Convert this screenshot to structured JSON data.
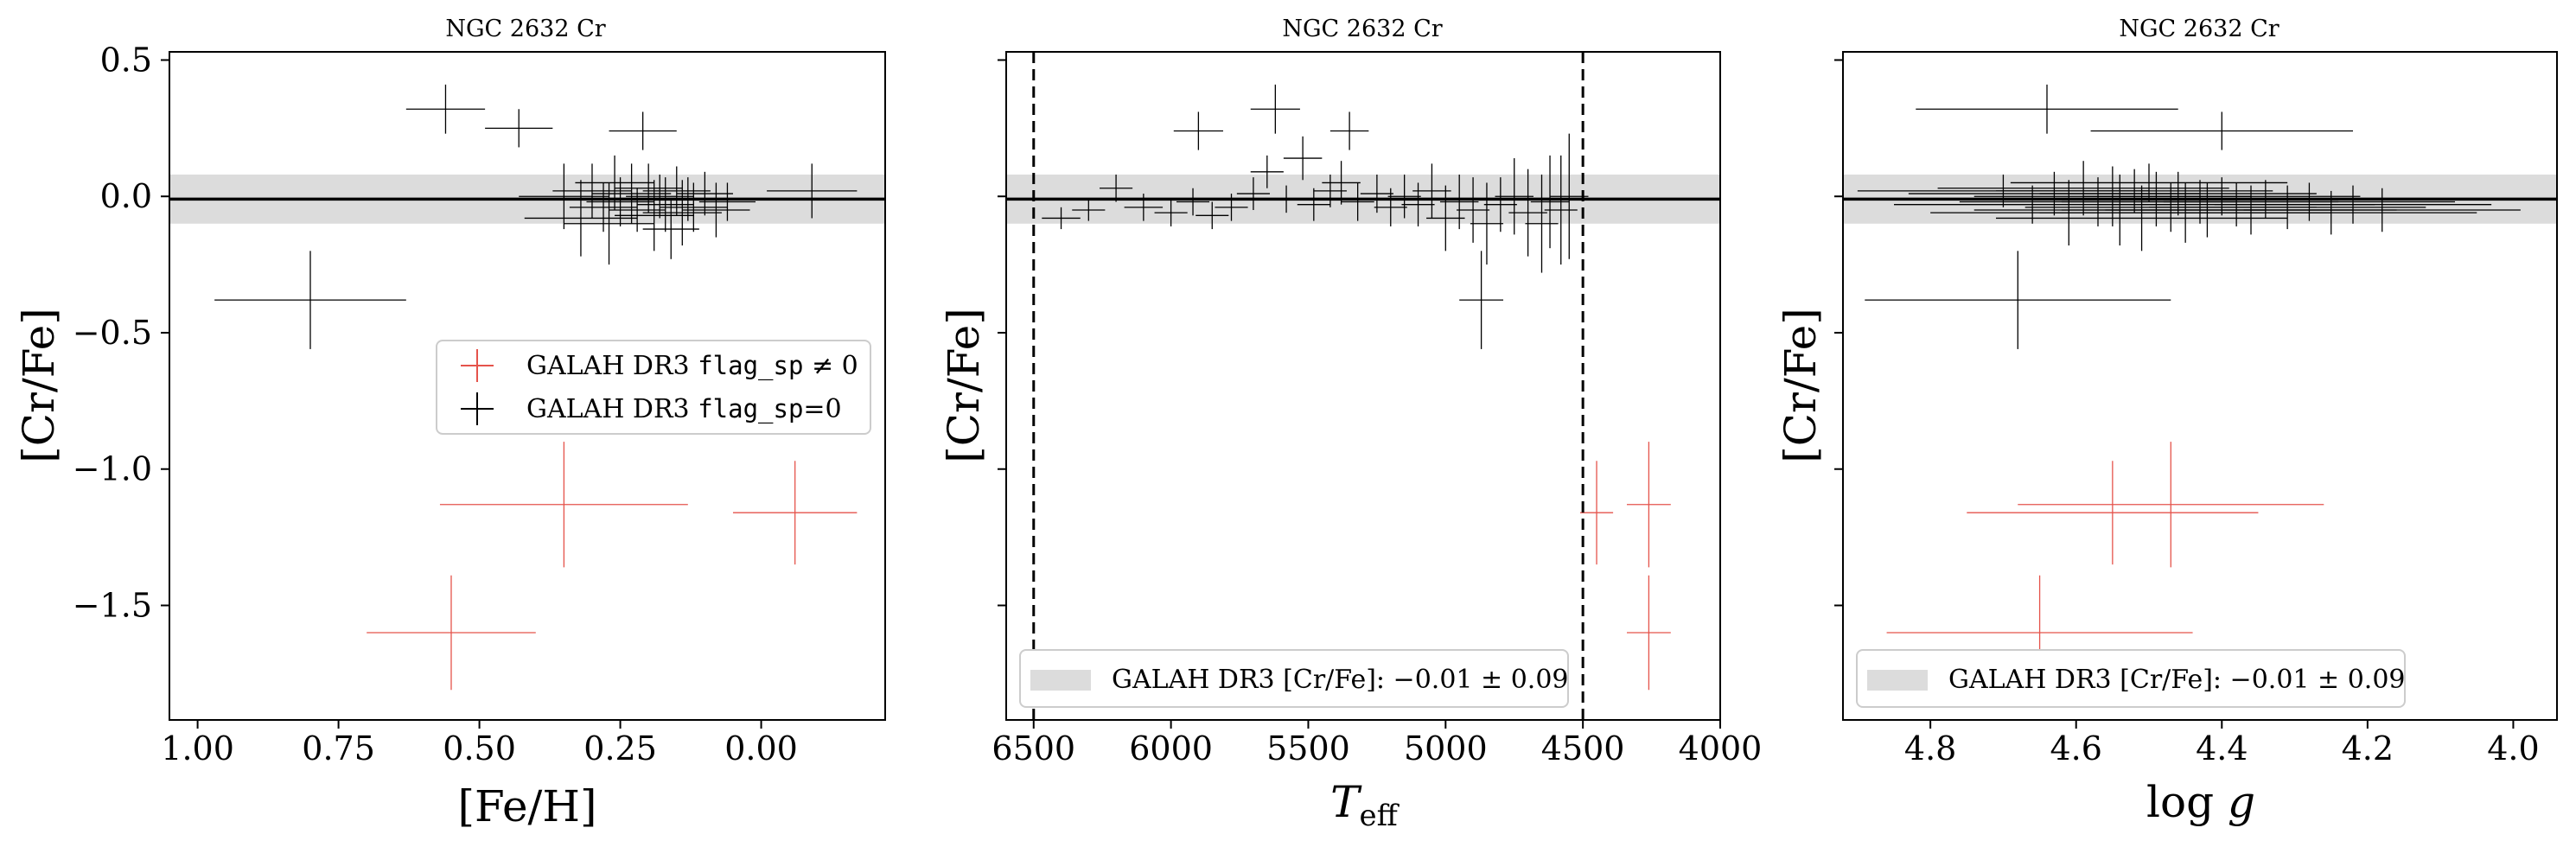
{
  "colors": {
    "flagged": "#e5534b",
    "unflagged": "#000000",
    "band": "#dcdcdc",
    "legend_border": "#cccccc"
  },
  "chart_data": [
    {
      "type": "scatter",
      "title": "NGC 2632 Cr",
      "xlabel": "[Fe/H]",
      "ylabel": "[Cr/Fe]",
      "xlim": [
        1.05,
        -0.22
      ],
      "ylim": [
        -1.92,
        0.53
      ],
      "xticks": [
        1.0,
        0.75,
        0.5,
        0.25,
        0.0
      ],
      "xtick_labels": [
        "1.00",
        "0.75",
        "0.50",
        "0.25",
        "0.00"
      ],
      "yticks": [
        0.5,
        0.0,
        -0.5,
        -1.0,
        -1.5
      ],
      "ytick_labels": [
        "0.5",
        "0.0",
        "−0.5",
        "−1.0",
        "−1.5"
      ],
      "show_ytick_labels": true,
      "band": {
        "center": -0.01,
        "sigma": 0.09
      },
      "hline": -0.01,
      "vlines": [],
      "legend": {
        "placement": "center-right",
        "entries": [
          {
            "label": "GALAH DR3 flag_sp ≠ 0",
            "style": "cross",
            "series": "flagged"
          },
          {
            "label": "GALAH DR3 flag_sp=0",
            "style": "cross",
            "series": "unflagged"
          }
        ]
      },
      "series": [
        {
          "key": "unflagged",
          "points": [
            {
              "x": 0.56,
              "y": 0.32,
              "xerr": 0.07,
              "yerr": 0.09
            },
            {
              "x": 0.43,
              "y": 0.25,
              "xerr": 0.06,
              "yerr": 0.07
            },
            {
              "x": 0.21,
              "y": 0.24,
              "xerr": 0.06,
              "yerr": 0.07
            },
            {
              "x": 0.8,
              "y": -0.38,
              "xerr": 0.17,
              "yerr": 0.18
            },
            {
              "x": 0.35,
              "y": 0.0,
              "xerr": 0.08,
              "yerr": 0.12
            },
            {
              "x": 0.32,
              "y": -0.08,
              "xerr": 0.1,
              "yerr": 0.14
            },
            {
              "x": 0.3,
              "y": 0.02,
              "xerr": 0.07,
              "yerr": 0.1
            },
            {
              "x": 0.28,
              "y": -0.04,
              "xerr": 0.06,
              "yerr": 0.09
            },
            {
              "x": 0.26,
              "y": 0.05,
              "xerr": 0.07,
              "yerr": 0.1
            },
            {
              "x": 0.25,
              "y": -0.02,
              "xerr": 0.06,
              "yerr": 0.09
            },
            {
              "x": 0.23,
              "y": 0.01,
              "xerr": 0.07,
              "yerr": 0.11
            },
            {
              "x": 0.22,
              "y": -0.05,
              "xerr": 0.05,
              "yerr": 0.08
            },
            {
              "x": 0.2,
              "y": 0.03,
              "xerr": 0.06,
              "yerr": 0.09
            },
            {
              "x": 0.19,
              "y": -0.07,
              "xerr": 0.07,
              "yerr": 0.13
            },
            {
              "x": 0.18,
              "y": 0.0,
              "xerr": 0.06,
              "yerr": 0.08
            },
            {
              "x": 0.17,
              "y": -0.03,
              "xerr": 0.05,
              "yerr": 0.1
            },
            {
              "x": 0.15,
              "y": 0.02,
              "xerr": 0.06,
              "yerr": 0.09
            },
            {
              "x": 0.14,
              "y": -0.06,
              "xerr": 0.07,
              "yerr": 0.12
            },
            {
              "x": 0.13,
              "y": -0.01,
              "xerr": 0.05,
              "yerr": 0.08
            },
            {
              "x": 0.12,
              "y": -0.04,
              "xerr": 0.06,
              "yerr": 0.09
            },
            {
              "x": 0.1,
              "y": 0.01,
              "xerr": 0.05,
              "yerr": 0.08
            },
            {
              "x": 0.08,
              "y": -0.05,
              "xerr": 0.06,
              "yerr": 0.1
            },
            {
              "x": 0.06,
              "y": -0.02,
              "xerr": 0.05,
              "yerr": 0.07
            },
            {
              "x": 0.27,
              "y": -0.1,
              "xerr": 0.08,
              "yerr": 0.15
            },
            {
              "x": 0.16,
              "y": -0.12,
              "xerr": 0.05,
              "yerr": 0.11
            },
            {
              "x": -0.09,
              "y": 0.02,
              "xerr": 0.08,
              "yerr": 0.1
            }
          ]
        },
        {
          "key": "flagged",
          "points": [
            {
              "x": 0.35,
              "y": -1.13,
              "xerr": 0.22,
              "yerr": 0.23
            },
            {
              "x": -0.06,
              "y": -1.16,
              "xerr": 0.11,
              "yerr": 0.19
            },
            {
              "x": 0.55,
              "y": -1.6,
              "xerr": 0.15,
              "yerr": 0.21
            }
          ]
        }
      ]
    },
    {
      "type": "scatter",
      "title": "NGC 2632 Cr",
      "xlabel": "T_eff",
      "ylabel": "[Cr/Fe]",
      "xlim": [
        6600,
        4000
      ],
      "ylim": [
        -1.92,
        0.53
      ],
      "xticks": [
        6500,
        6000,
        5500,
        5000,
        4500,
        4000
      ],
      "xtick_labels": [
        "6500",
        "6000",
        "5500",
        "5000",
        "4500",
        "4000"
      ],
      "yticks": [
        0.5,
        0.0,
        -0.5,
        -1.0,
        -1.5
      ],
      "ytick_labels": [
        "0.5",
        "0.0",
        "−0.5",
        "−1.0",
        "−1.5"
      ],
      "show_ytick_labels": false,
      "band": {
        "center": -0.01,
        "sigma": 0.09
      },
      "hline": -0.01,
      "vlines": [
        6500,
        4500
      ],
      "legend": {
        "placement": "lower-center",
        "entries": [
          {
            "label": "GALAH DR3 [Cr/Fe]: −0.01 ± 0.09",
            "style": "patch",
            "series": "band"
          }
        ]
      },
      "series": [
        {
          "key": "unflagged",
          "points": [
            {
              "x": 5900,
              "y": 0.24,
              "xerr": 90,
              "yerr": 0.07
            },
            {
              "x": 5620,
              "y": 0.32,
              "xerr": 90,
              "yerr": 0.09
            },
            {
              "x": 5350,
              "y": 0.24,
              "xerr": 70,
              "yerr": 0.07
            },
            {
              "x": 6400,
              "y": -0.08,
              "xerr": 70,
              "yerr": 0.04
            },
            {
              "x": 6300,
              "y": -0.05,
              "xerr": 60,
              "yerr": 0.04
            },
            {
              "x": 6200,
              "y": 0.03,
              "xerr": 60,
              "yerr": 0.05
            },
            {
              "x": 6100,
              "y": -0.04,
              "xerr": 70,
              "yerr": 0.05
            },
            {
              "x": 6000,
              "y": -0.06,
              "xerr": 60,
              "yerr": 0.05
            },
            {
              "x": 5920,
              "y": -0.02,
              "xerr": 60,
              "yerr": 0.05
            },
            {
              "x": 5850,
              "y": -0.07,
              "xerr": 60,
              "yerr": 0.05
            },
            {
              "x": 5780,
              "y": -0.04,
              "xerr": 60,
              "yerr": 0.05
            },
            {
              "x": 5700,
              "y": 0.01,
              "xerr": 60,
              "yerr": 0.06
            },
            {
              "x": 5650,
              "y": 0.09,
              "xerr": 60,
              "yerr": 0.06
            },
            {
              "x": 5580,
              "y": -0.01,
              "xerr": 60,
              "yerr": 0.05
            },
            {
              "x": 5520,
              "y": 0.14,
              "xerr": 70,
              "yerr": 0.08
            },
            {
              "x": 5480,
              "y": -0.03,
              "xerr": 60,
              "yerr": 0.06
            },
            {
              "x": 5420,
              "y": 0.02,
              "xerr": 60,
              "yerr": 0.06
            },
            {
              "x": 5380,
              "y": 0.05,
              "xerr": 70,
              "yerr": 0.08
            },
            {
              "x": 5320,
              "y": -0.02,
              "xerr": 60,
              "yerr": 0.07
            },
            {
              "x": 5250,
              "y": 0.01,
              "xerr": 60,
              "yerr": 0.07
            },
            {
              "x": 5200,
              "y": -0.04,
              "xerr": 60,
              "yerr": 0.07
            },
            {
              "x": 5150,
              "y": 0.0,
              "xerr": 60,
              "yerr": 0.08
            },
            {
              "x": 5100,
              "y": -0.03,
              "xerr": 60,
              "yerr": 0.08
            },
            {
              "x": 5050,
              "y": 0.02,
              "xerr": 70,
              "yerr": 0.1
            },
            {
              "x": 5000,
              "y": -0.08,
              "xerr": 70,
              "yerr": 0.12
            },
            {
              "x": 4950,
              "y": -0.02,
              "xerr": 70,
              "yerr": 0.1
            },
            {
              "x": 4900,
              "y": -0.05,
              "xerr": 60,
              "yerr": 0.12
            },
            {
              "x": 4850,
              "y": -0.1,
              "xerr": 60,
              "yerr": 0.15
            },
            {
              "x": 4800,
              "y": -0.03,
              "xerr": 60,
              "yerr": 0.1
            },
            {
              "x": 4750,
              "y": 0.0,
              "xerr": 70,
              "yerr": 0.14
            },
            {
              "x": 4700,
              "y": -0.06,
              "xerr": 70,
              "yerr": 0.16
            },
            {
              "x": 4650,
              "y": -0.1,
              "xerr": 60,
              "yerr": 0.18
            },
            {
              "x": 4620,
              "y": -0.02,
              "xerr": 70,
              "yerr": 0.17
            },
            {
              "x": 4580,
              "y": -0.05,
              "xerr": 60,
              "yerr": 0.2
            },
            {
              "x": 4550,
              "y": 0.0,
              "xerr": 70,
              "yerr": 0.23
            },
            {
              "x": 4870,
              "y": -0.38,
              "xerr": 80,
              "yerr": 0.18
            }
          ]
        },
        {
          "key": "flagged",
          "points": [
            {
              "x": 4260,
              "y": -1.13,
              "xerr": 80,
              "yerr": 0.23
            },
            {
              "x": 4450,
              "y": -1.16,
              "xerr": 60,
              "yerr": 0.19
            },
            {
              "x": 4260,
              "y": -1.6,
              "xerr": 80,
              "yerr": 0.21
            }
          ]
        }
      ]
    },
    {
      "type": "scatter",
      "title": "NGC 2632 Cr",
      "xlabel": "log g",
      "ylabel": "[Cr/Fe]",
      "xlim": [
        4.92,
        3.94
      ],
      "ylim": [
        -1.92,
        0.53
      ],
      "xticks": [
        4.8,
        4.6,
        4.4,
        4.2,
        4.0
      ],
      "xtick_labels": [
        "4.8",
        "4.6",
        "4.4",
        "4.2",
        "4.0"
      ],
      "yticks": [
        0.5,
        0.0,
        -0.5,
        -1.0,
        -1.5
      ],
      "ytick_labels": [
        "0.5",
        "0.0",
        "−0.5",
        "−1.0",
        "−1.5"
      ],
      "show_ytick_labels": false,
      "band": {
        "center": -0.01,
        "sigma": 0.09
      },
      "hline": -0.01,
      "vlines": [],
      "legend": {
        "placement": "lower-center",
        "entries": [
          {
            "label": "GALAH DR3 [Cr/Fe]: −0.01 ± 0.09",
            "style": "patch",
            "series": "band"
          }
        ]
      },
      "series": [
        {
          "key": "unflagged",
          "points": [
            {
              "x": 4.64,
              "y": 0.32,
              "xerr": 0.18,
              "yerr": 0.09
            },
            {
              "x": 4.4,
              "y": 0.24,
              "xerr": 0.18,
              "yerr": 0.07
            },
            {
              "x": 4.68,
              "y": -0.38,
              "xerr": 0.21,
              "yerr": 0.18
            },
            {
              "x": 4.7,
              "y": 0.02,
              "xerr": 0.2,
              "yerr": 0.06
            },
            {
              "x": 4.66,
              "y": -0.03,
              "xerr": 0.19,
              "yerr": 0.07
            },
            {
              "x": 4.63,
              "y": 0.01,
              "xerr": 0.2,
              "yerr": 0.08
            },
            {
              "x": 4.61,
              "y": -0.06,
              "xerr": 0.19,
              "yerr": 0.12
            },
            {
              "x": 4.59,
              "y": 0.03,
              "xerr": 0.2,
              "yerr": 0.1
            },
            {
              "x": 4.57,
              "y": -0.02,
              "xerr": 0.19,
              "yerr": 0.09
            },
            {
              "x": 4.55,
              "y": 0.0,
              "xerr": 0.19,
              "yerr": 0.11
            },
            {
              "x": 4.54,
              "y": -0.05,
              "xerr": 0.2,
              "yerr": 0.13
            },
            {
              "x": 4.52,
              "y": 0.02,
              "xerr": 0.19,
              "yerr": 0.08
            },
            {
              "x": 4.51,
              "y": -0.08,
              "xerr": 0.2,
              "yerr": 0.12
            },
            {
              "x": 4.5,
              "y": 0.05,
              "xerr": 0.19,
              "yerr": 0.07
            },
            {
              "x": 4.49,
              "y": -0.01,
              "xerr": 0.2,
              "yerr": 0.1
            },
            {
              "x": 4.47,
              "y": -0.04,
              "xerr": 0.2,
              "yerr": 0.09
            },
            {
              "x": 4.46,
              "y": 0.01,
              "xerr": 0.19,
              "yerr": 0.08
            },
            {
              "x": 4.45,
              "y": -0.06,
              "xerr": 0.2,
              "yerr": 0.11
            },
            {
              "x": 4.43,
              "y": -0.02,
              "xerr": 0.19,
              "yerr": 0.08
            },
            {
              "x": 4.42,
              "y": -0.05,
              "xerr": 0.2,
              "yerr": 0.1
            },
            {
              "x": 4.4,
              "y": 0.0,
              "xerr": 0.19,
              "yerr": 0.07
            },
            {
              "x": 4.38,
              "y": -0.03,
              "xerr": 0.19,
              "yerr": 0.08
            },
            {
              "x": 4.36,
              "y": -0.05,
              "xerr": 0.2,
              "yerr": 0.09
            },
            {
              "x": 4.34,
              "y": -0.01,
              "xerr": 0.18,
              "yerr": 0.07
            },
            {
              "x": 4.31,
              "y": -0.04,
              "xerr": 0.19,
              "yerr": 0.08
            },
            {
              "x": 4.28,
              "y": -0.02,
              "xerr": 0.2,
              "yerr": 0.07
            },
            {
              "x": 4.25,
              "y": -0.06,
              "xerr": 0.2,
              "yerr": 0.08
            },
            {
              "x": 4.22,
              "y": -0.03,
              "xerr": 0.19,
              "yerr": 0.07
            },
            {
              "x": 4.18,
              "y": -0.05,
              "xerr": 0.19,
              "yerr": 0.08
            }
          ]
        },
        {
          "key": "flagged",
          "points": [
            {
              "x": 4.47,
              "y": -1.13,
              "xerr": 0.21,
              "yerr": 0.23
            },
            {
              "x": 4.55,
              "y": -1.16,
              "xerr": 0.2,
              "yerr": 0.19
            },
            {
              "x": 4.65,
              "y": -1.6,
              "xerr": 0.21,
              "yerr": 0.21
            }
          ]
        }
      ]
    }
  ]
}
